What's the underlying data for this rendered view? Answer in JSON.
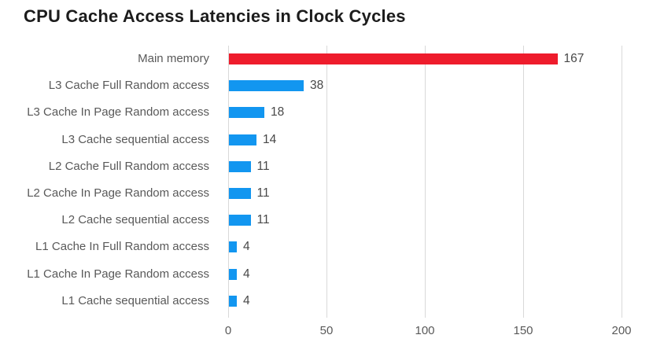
{
  "chart_data": {
    "type": "bar",
    "orientation": "horizontal",
    "title": "CPU Cache Access Latencies in Clock Cycles",
    "categories": [
      "Main memory",
      "L3 Cache Full Random access",
      "L3 Cache In Page Random access",
      "L3 Cache sequential access",
      "L2 Cache Full Random access",
      "L2 Cache In Page Random access",
      "L2 Cache sequential access",
      "L1 Cache In Full Random access",
      "L1 Cache In Page Random access",
      "L1 Cache sequential access"
    ],
    "values": [
      167,
      38,
      18,
      14,
      11,
      11,
      11,
      4,
      4,
      4
    ],
    "value_labels": [
      "167",
      "38",
      "18",
      "14",
      "11",
      "11",
      "11",
      "4",
      "4",
      "4"
    ],
    "bar_colors": [
      "#ee1c2c",
      "#1296f0",
      "#1296f0",
      "#1296f0",
      "#1296f0",
      "#1296f0",
      "#1296f0",
      "#1296f0",
      "#1296f0",
      "#1296f0"
    ],
    "x_ticks": [
      0,
      50,
      100,
      150,
      200
    ],
    "xlim": [
      0,
      200
    ],
    "grid": true,
    "legend": false,
    "colors": {
      "highlight_bar": "#ee1c2c",
      "default_bar": "#1296f0",
      "gridline": "#d9d9d9",
      "category_label": "#595959",
      "tick_label": "#595959",
      "value_label": "#484848",
      "title": "#1c1c1c",
      "background": "#ffffff"
    }
  }
}
